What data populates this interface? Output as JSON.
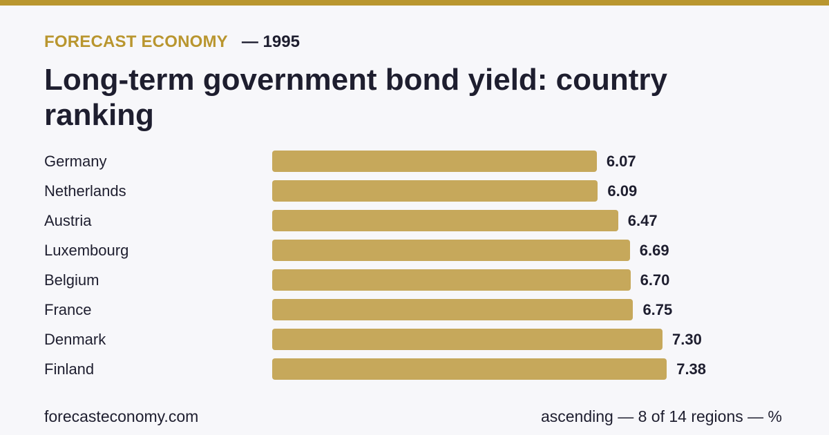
{
  "header": {
    "brand": "FORECAST ECONOMY",
    "year": "— 1995",
    "title": "Long-term government bond yield: country ranking"
  },
  "colors": {
    "accent": "#b9962f",
    "bar": "#c6a85b",
    "text": "#1e1e2f",
    "background": "#f7f7fa"
  },
  "chart_data": {
    "type": "bar",
    "orientation": "horizontal",
    "sort": "ascending",
    "categories": [
      "Germany",
      "Netherlands",
      "Austria",
      "Luxembourg",
      "Belgium",
      "France",
      "Denmark",
      "Finland"
    ],
    "values": [
      6.07,
      6.09,
      6.47,
      6.69,
      6.7,
      6.75,
      7.3,
      7.38
    ],
    "value_labels": [
      "6.07",
      "6.09",
      "6.47",
      "6.69",
      "6.70",
      "6.75",
      "7.30",
      "7.38"
    ],
    "grid": false,
    "legend": "none"
  },
  "footer": {
    "site": "forecasteconomy.com",
    "note": "ascending — 8 of 14 regions — %"
  }
}
